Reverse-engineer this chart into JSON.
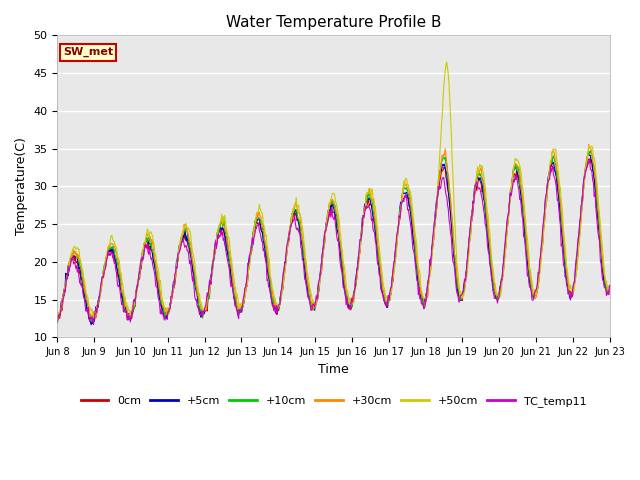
{
  "title": "Water Temperature Profile B",
  "xlabel": "Time",
  "ylabel": "Temperature(C)",
  "ylim": [
    10,
    50
  ],
  "yticks": [
    10,
    15,
    20,
    25,
    30,
    35,
    40,
    45,
    50
  ],
  "annotation_text": "SW_met",
  "bg_color": "#e8e8e8",
  "series_colors": {
    "0cm": "#cc0000",
    "+5cm": "#0000cc",
    "+10cm": "#00cc00",
    "+30cm": "#ff8800",
    "+50cm": "#cccc00",
    "TC_temp11": "#cc00cc"
  },
  "xtick_labels": [
    "Jun 8",
    "Jun 9",
    "Jun 10",
    "Jun 11",
    "Jun 12",
    "Jun 13",
    "Jun 14",
    "Jun 15",
    "Jun 16",
    "Jun 17",
    "Jun 18",
    "Jun 19",
    "Jun 20",
    "Jun 21",
    "Jun 22",
    "Jun 23"
  ],
  "n_points": 720,
  "days": 15
}
